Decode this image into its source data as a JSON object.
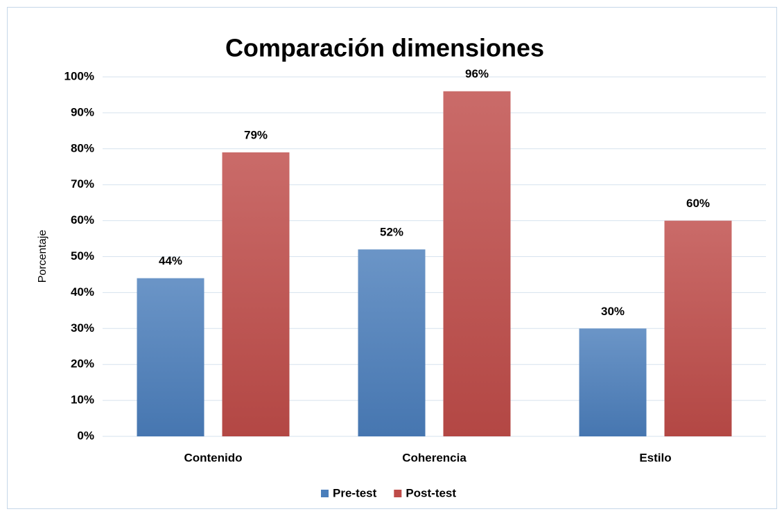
{
  "chart_data": {
    "type": "bar",
    "title": "Comparación dimensiones",
    "y_label": "Porcentaje",
    "categories": [
      "Contenido",
      "Coherencia",
      "Estilo"
    ],
    "series": [
      {
        "name": "Pre-test",
        "color": "#4a7ebb",
        "values": [
          44,
          52,
          30
        ],
        "value_labels": [
          "44%",
          "52%",
          "30%"
        ]
      },
      {
        "name": "Post-test",
        "color": "#be4b48",
        "values": [
          79,
          96,
          60
        ],
        "value_labels": [
          "79%",
          "96%",
          "60%"
        ]
      }
    ],
    "ylim": [
      0,
      100
    ],
    "yticks": [
      {
        "value": 0,
        "label": "0%"
      },
      {
        "value": 10,
        "label": "10%"
      },
      {
        "value": 20,
        "label": "20%"
      },
      {
        "value": 30,
        "label": "30%"
      },
      {
        "value": 40,
        "label": "40%"
      },
      {
        "value": 50,
        "label": "50%"
      },
      {
        "value": 60,
        "label": "60%"
      },
      {
        "value": 70,
        "label": "70%"
      },
      {
        "value": 80,
        "label": "80%"
      },
      {
        "value": 90,
        "label": "90%"
      },
      {
        "value": 100,
        "label": "100%"
      }
    ],
    "grid": true,
    "legend": "bottom"
  }
}
